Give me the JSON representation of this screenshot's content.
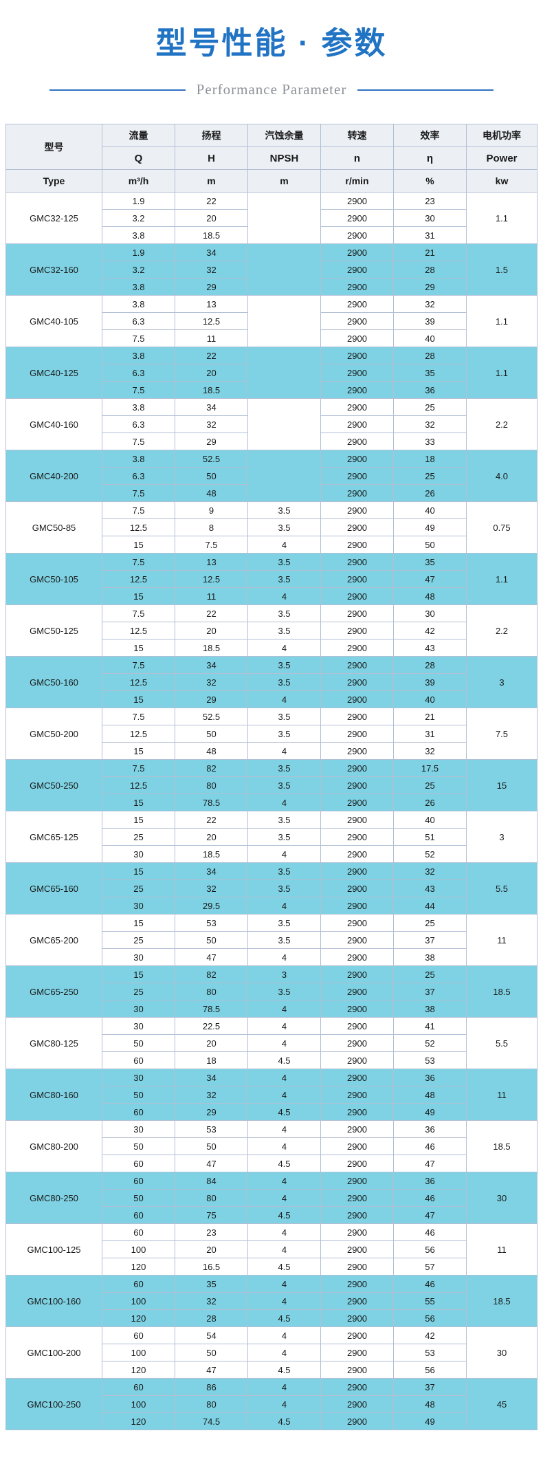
{
  "page": {
    "title": "型号性能 · 参数",
    "subtitle": "Performance Parameter"
  },
  "colors": {
    "title_blue": "#2173c4",
    "subtitle_line_blue": "#2e71c2",
    "row_cyan": "#7ed2e3",
    "header_bg": "#ecf0f5",
    "border": "#b2bfd5"
  },
  "table": {
    "header": {
      "model_cn": "型号",
      "model_en": "Type",
      "cols": [
        {
          "cn": "流量",
          "sym": "Q",
          "unit": "m³/h"
        },
        {
          "cn": "扬程",
          "sym": "H",
          "unit": "m"
        },
        {
          "cn": "汽蚀余量",
          "sym": "NPSH",
          "unit": "m"
        },
        {
          "cn": "转速",
          "sym": "n",
          "unit": "r/min"
        },
        {
          "cn": "效率",
          "sym": "η",
          "unit": "%"
        },
        {
          "cn": "电机功率",
          "sym": "Power",
          "unit": "kw"
        }
      ]
    },
    "groups": [
      {
        "model": "GMC32-125",
        "power": "1.1",
        "rows": [
          [
            "1.9",
            "22",
            "",
            "2900",
            "23"
          ],
          [
            "3.2",
            "20",
            "",
            "2900",
            "30"
          ],
          [
            "3.8",
            "18.5",
            "",
            "2900",
            "31"
          ]
        ]
      },
      {
        "model": "GMC32-160",
        "power": "1.5",
        "rows": [
          [
            "1.9",
            "34",
            "",
            "2900",
            "21"
          ],
          [
            "3.2",
            "32",
            "",
            "2900",
            "28"
          ],
          [
            "3.8",
            "29",
            "",
            "2900",
            "29"
          ]
        ]
      },
      {
        "model": "GMC40-105",
        "power": "1.1",
        "rows": [
          [
            "3.8",
            "13",
            "",
            "2900",
            "32"
          ],
          [
            "6.3",
            "12.5",
            "",
            "2900",
            "39"
          ],
          [
            "7.5",
            "11",
            "",
            "2900",
            "40"
          ]
        ]
      },
      {
        "model": "GMC40-125",
        "power": "1.1",
        "rows": [
          [
            "3.8",
            "22",
            "",
            "2900",
            "28"
          ],
          [
            "6.3",
            "20",
            "",
            "2900",
            "35"
          ],
          [
            "7.5",
            "18.5",
            "",
            "2900",
            "36"
          ]
        ]
      },
      {
        "model": "GMC40-160",
        "power": "2.2",
        "rows": [
          [
            "3.8",
            "34",
            "",
            "2900",
            "25"
          ],
          [
            "6.3",
            "32",
            "",
            "2900",
            "32"
          ],
          [
            "7.5",
            "29",
            "",
            "2900",
            "33"
          ]
        ]
      },
      {
        "model": "GMC40-200",
        "power": "4.0",
        "rows": [
          [
            "3.8",
            "52.5",
            "",
            "2900",
            "18"
          ],
          [
            "6.3",
            "50",
            "",
            "2900",
            "25"
          ],
          [
            "7.5",
            "48",
            "",
            "2900",
            "26"
          ]
        ]
      },
      {
        "model": "GMC50-85",
        "power": "0.75",
        "rows": [
          [
            "7.5",
            "9",
            "3.5",
            "2900",
            "40"
          ],
          [
            "12.5",
            "8",
            "3.5",
            "2900",
            "49"
          ],
          [
            "15",
            "7.5",
            "4",
            "2900",
            "50"
          ]
        ]
      },
      {
        "model": "GMC50-105",
        "power": "1.1",
        "rows": [
          [
            "7.5",
            "13",
            "3.5",
            "2900",
            "35"
          ],
          [
            "12.5",
            "12.5",
            "3.5",
            "2900",
            "47"
          ],
          [
            "15",
            "11",
            "4",
            "2900",
            "48"
          ]
        ]
      },
      {
        "model": "GMC50-125",
        "power": "2.2",
        "rows": [
          [
            "7.5",
            "22",
            "3.5",
            "2900",
            "30"
          ],
          [
            "12.5",
            "20",
            "3.5",
            "2900",
            "42"
          ],
          [
            "15",
            "18.5",
            "4",
            "2900",
            "43"
          ]
        ]
      },
      {
        "model": "GMC50-160",
        "power": "3",
        "rows": [
          [
            "7.5",
            "34",
            "3.5",
            "2900",
            "28"
          ],
          [
            "12.5",
            "32",
            "3.5",
            "2900",
            "39"
          ],
          [
            "15",
            "29",
            "4",
            "2900",
            "40"
          ]
        ]
      },
      {
        "model": "GMC50-200",
        "power": "7.5",
        "rows": [
          [
            "7.5",
            "52.5",
            "3.5",
            "2900",
            "21"
          ],
          [
            "12.5",
            "50",
            "3.5",
            "2900",
            "31"
          ],
          [
            "15",
            "48",
            "4",
            "2900",
            "32"
          ]
        ]
      },
      {
        "model": "GMC50-250",
        "power": "15",
        "rows": [
          [
            "7.5",
            "82",
            "3.5",
            "2900",
            "17.5"
          ],
          [
            "12.5",
            "80",
            "3.5",
            "2900",
            "25"
          ],
          [
            "15",
            "78.5",
            "4",
            "2900",
            "26"
          ]
        ]
      },
      {
        "model": "GMC65-125",
        "power": "3",
        "rows": [
          [
            "15",
            "22",
            "3.5",
            "2900",
            "40"
          ],
          [
            "25",
            "20",
            "3.5",
            "2900",
            "51"
          ],
          [
            "30",
            "18.5",
            "4",
            "2900",
            "52"
          ]
        ]
      },
      {
        "model": "GMC65-160",
        "power": "5.5",
        "rows": [
          [
            "15",
            "34",
            "3.5",
            "2900",
            "32"
          ],
          [
            "25",
            "32",
            "3.5",
            "2900",
            "43"
          ],
          [
            "30",
            "29.5",
            "4",
            "2900",
            "44"
          ]
        ]
      },
      {
        "model": "GMC65-200",
        "power": "11",
        "rows": [
          [
            "15",
            "53",
            "3.5",
            "2900",
            "25"
          ],
          [
            "25",
            "50",
            "3.5",
            "2900",
            "37"
          ],
          [
            "30",
            "47",
            "4",
            "2900",
            "38"
          ]
        ]
      },
      {
        "model": "GMC65-250",
        "power": "18.5",
        "rows": [
          [
            "15",
            "82",
            "3",
            "2900",
            "25"
          ],
          [
            "25",
            "80",
            "3.5",
            "2900",
            "37"
          ],
          [
            "30",
            "78.5",
            "4",
            "2900",
            "38"
          ]
        ]
      },
      {
        "model": "GMC80-125",
        "power": "5.5",
        "rows": [
          [
            "30",
            "22.5",
            "4",
            "2900",
            "41"
          ],
          [
            "50",
            "20",
            "4",
            "2900",
            "52"
          ],
          [
            "60",
            "18",
            "4.5",
            "2900",
            "53"
          ]
        ]
      },
      {
        "model": "GMC80-160",
        "power": "11",
        "rows": [
          [
            "30",
            "34",
            "4",
            "2900",
            "36"
          ],
          [
            "50",
            "32",
            "4",
            "2900",
            "48"
          ],
          [
            "60",
            "29",
            "4.5",
            "2900",
            "49"
          ]
        ]
      },
      {
        "model": "GMC80-200",
        "power": "18.5",
        "rows": [
          [
            "30",
            "53",
            "4",
            "2900",
            "36"
          ],
          [
            "50",
            "50",
            "4",
            "2900",
            "46"
          ],
          [
            "60",
            "47",
            "4.5",
            "2900",
            "47"
          ]
        ]
      },
      {
        "model": "GMC80-250",
        "power": "30",
        "rows": [
          [
            "60",
            "84",
            "4",
            "2900",
            "36"
          ],
          [
            "50",
            "80",
            "4",
            "2900",
            "46"
          ],
          [
            "60",
            "75",
            "4.5",
            "2900",
            "47"
          ]
        ]
      },
      {
        "model": "GMC100-125",
        "power": "11",
        "rows": [
          [
            "60",
            "23",
            "4",
            "2900",
            "46"
          ],
          [
            "100",
            "20",
            "4",
            "2900",
            "56"
          ],
          [
            "120",
            "16.5",
            "4.5",
            "2900",
            "57"
          ]
        ]
      },
      {
        "model": "GMC100-160",
        "power": "18.5",
        "rows": [
          [
            "60",
            "35",
            "4",
            "2900",
            "46"
          ],
          [
            "100",
            "32",
            "4",
            "2900",
            "55"
          ],
          [
            "120",
            "28",
            "4.5",
            "2900",
            "56"
          ]
        ]
      },
      {
        "model": "GMC100-200",
        "power": "30",
        "rows": [
          [
            "60",
            "54",
            "4",
            "2900",
            "42"
          ],
          [
            "100",
            "50",
            "4",
            "2900",
            "53"
          ],
          [
            "120",
            "47",
            "4.5",
            "2900",
            "56"
          ]
        ]
      },
      {
        "model": "GMC100-250",
        "power": "45",
        "rows": [
          [
            "60",
            "86",
            "4",
            "2900",
            "37"
          ],
          [
            "100",
            "80",
            "4",
            "2900",
            "48"
          ],
          [
            "120",
            "74.5",
            "4.5",
            "2900",
            "49"
          ]
        ]
      }
    ]
  }
}
